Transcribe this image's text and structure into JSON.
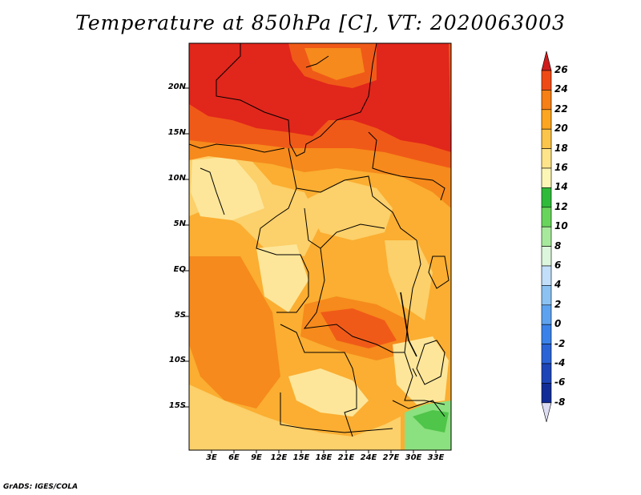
{
  "title": "Temperature at 850hPa [C], VT: 2020063003",
  "credit": "GrADS: IGES/COLA",
  "map": {
    "lat_labels": [
      "20N",
      "15N",
      "10N",
      "5N",
      "EQ",
      "5S",
      "10S",
      "15S"
    ],
    "lon_labels": [
      "3E",
      "6E",
      "9E",
      "12E",
      "15E",
      "18E",
      "21E",
      "24E",
      "27E",
      "30E",
      "33E"
    ]
  },
  "colorbar": {
    "labels": [
      "26",
      "24",
      "22",
      "20",
      "18",
      "16",
      "14",
      "12",
      "10",
      "8",
      "6",
      "4",
      "2",
      "0",
      "-2",
      "-4",
      "-6",
      "-8"
    ],
    "colors": [
      "#e8251c",
      "#ef4a16",
      "#f67f16",
      "#fba521",
      "#fbc44a",
      "#fde48a",
      "#fcf6b6",
      "#2fba3a",
      "#69d45c",
      "#a7e99c",
      "#dcf5dd",
      "#c2def8",
      "#8cc2f3",
      "#5da2ee",
      "#3a82e9",
      "#2a63d6",
      "#1d45b8",
      "#112c96",
      "#0b1670"
    ],
    "top_color": "#d01c1c",
    "bottom_color": "#dcdcf2"
  },
  "field_colors": {
    "hot": "#e1261c",
    "warm": "#f05a18",
    "orange": "#f68a1c",
    "amber": "#fbae31",
    "light": "#fcd06a",
    "pale": "#fde69a",
    "green": "#4fc54a",
    "lightgreen": "#8be07f"
  }
}
